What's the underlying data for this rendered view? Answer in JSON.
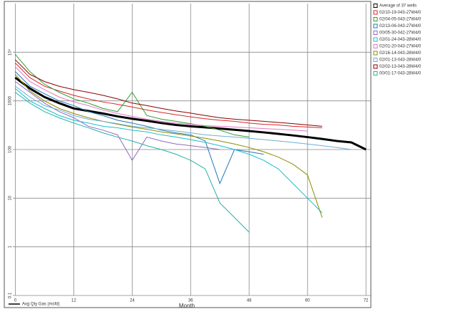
{
  "chart_data": {
    "type": "line",
    "log_y": true,
    "grid": true,
    "x_label": "Month",
    "y_label": "Avg Qty Gas (mcfd)",
    "xlim": [
      -0.5,
      73
    ],
    "xticks": [
      0,
      12,
      24,
      36,
      48,
      60,
      72
    ],
    "ylim": [
      0.1,
      100000
    ],
    "yticks": [
      0.1,
      1,
      10,
      100,
      1000,
      {
        "value": 10000,
        "label": "10⁴"
      }
    ],
    "x": [
      0,
      3,
      6,
      9,
      12,
      15,
      18,
      21,
      24,
      27,
      30,
      33,
      36,
      39,
      42,
      45,
      48,
      51,
      54,
      57,
      60,
      63,
      66,
      69,
      72
    ],
    "series": [
      {
        "name": "Average of 37 wells",
        "color": "#000000",
        "width": 3,
        "values": [
          3000,
          1800,
          1200,
          900,
          700,
          620,
          550,
          480,
          430,
          390,
          350,
          320,
          300,
          285,
          270,
          255,
          240,
          225,
          210,
          195,
          180,
          165,
          150,
          140,
          100
        ]
      },
      {
        "name": "02/10-19-043-27W4/0",
        "color": "#d62728",
        "width": 1,
        "values": [
          6000,
          3000,
          2000,
          1600,
          1300,
          1100,
          950,
          850,
          750,
          650,
          580,
          520,
          470,
          430,
          400,
          380,
          350,
          330,
          320,
          300,
          290,
          280,
          null,
          null,
          null
        ]
      },
      {
        "name": "02/04-05-043-27W4/0",
        "color": "#2ca02c",
        "width": 1,
        "values": [
          9000,
          4000,
          2200,
          1500,
          1100,
          900,
          700,
          600,
          1500,
          500,
          420,
          380,
          340,
          300,
          250,
          200,
          180,
          null,
          null,
          null,
          null,
          null,
          null,
          null,
          null
        ]
      },
      {
        "name": "02/13-06-043-27W4/0",
        "color": "#1f77b4",
        "width": 1,
        "values": [
          4000,
          2000,
          1400,
          1000,
          800,
          600,
          500,
          400,
          350,
          300,
          250,
          220,
          200,
          150,
          20,
          100,
          90,
          80,
          null,
          null,
          null,
          null,
          null,
          null,
          null
        ]
      },
      {
        "name": "00/05-30-042-27W4/0",
        "color": "#9467bd",
        "width": 1,
        "values": [
          2500,
          1500,
          900,
          600,
          450,
          300,
          250,
          200,
          60,
          180,
          150,
          130,
          120,
          110,
          100,
          null,
          null,
          null,
          null,
          null,
          null,
          null,
          null,
          null,
          null
        ]
      },
      {
        "name": "02/01-24-043-28W4/0",
        "color": "#17becf",
        "width": 1,
        "values": [
          1800,
          1000,
          700,
          500,
          400,
          350,
          300,
          280,
          250,
          230,
          200,
          180,
          160,
          140,
          120,
          100,
          80,
          60,
          40,
          20,
          10,
          5,
          null,
          null,
          null
        ]
      },
      {
        "name": "02/01-20-043-27W4/0",
        "color": "#e377c2",
        "width": 1,
        "values": [
          5000,
          2500,
          1700,
          1200,
          950,
          800,
          650,
          550,
          480,
          420,
          380,
          350,
          330,
          310,
          300,
          290,
          280,
          270,
          260,
          250,
          240,
          null,
          null,
          null,
          null
        ]
      },
      {
        "name": "02/16-14-043-28W4/0",
        "color": "#8c8c00",
        "width": 1,
        "values": [
          3500,
          1600,
          1000,
          700,
          550,
          450,
          380,
          330,
          290,
          260,
          230,
          210,
          190,
          170,
          150,
          130,
          110,
          90,
          70,
          50,
          30,
          4,
          null,
          null,
          null
        ]
      },
      {
        "name": "02/01-13-043-28W4/0",
        "color": "#6baed6",
        "width": 1,
        "values": [
          2000,
          1200,
          800,
          650,
          500,
          420,
          380,
          340,
          300,
          280,
          260,
          240,
          220,
          200,
          190,
          180,
          170,
          160,
          150,
          140,
          130,
          120,
          110,
          100,
          null
        ]
      },
      {
        "name": "02/02-13-043-28W4/0",
        "color": "#8b0000",
        "width": 1,
        "values": [
          7000,
          3500,
          2500,
          2000,
          1700,
          1500,
          1300,
          1100,
          900,
          800,
          700,
          620,
          560,
          500,
          450,
          420,
          400,
          380,
          360,
          340,
          320,
          300,
          null,
          null,
          null
        ]
      },
      {
        "name": "00/01-17-043-28W4/0",
        "color": "#20b2aa",
        "width": 1,
        "values": [
          1500,
          900,
          600,
          450,
          350,
          280,
          220,
          180,
          150,
          120,
          100,
          80,
          60,
          40,
          8,
          4,
          2,
          null,
          null,
          null,
          null,
          null,
          null,
          null,
          null
        ]
      }
    ]
  }
}
